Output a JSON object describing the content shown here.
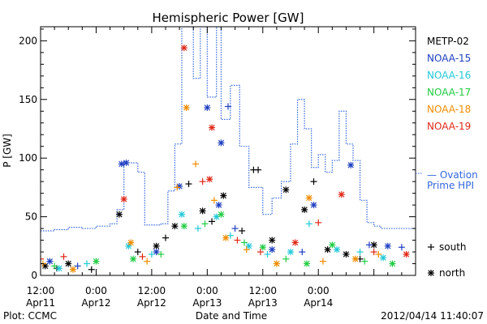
{
  "chart_data": {
    "type": "scatter",
    "title": "Hemispheric Power [GW]",
    "xlabel": "Date and Time",
    "ylabel": "P [GW]",
    "ylim": [
      0,
      212
    ],
    "xlim": [
      "2012-04-11T12:00",
      "2012-04-14T21:00"
    ],
    "y_ticks": [
      0,
      50,
      100,
      150,
      200
    ],
    "x_ticks": [
      {
        "time": "2012-04-11T12:00",
        "line1": "12:00",
        "line2": "Apr11"
      },
      {
        "time": "2012-04-12T00:00",
        "line1": "0:00",
        "line2": "Apr12"
      },
      {
        "time": "2012-04-12T12:00",
        "line1": "12:00",
        "line2": "Apr12"
      },
      {
        "time": "2012-04-13T00:00",
        "line1": "0:00",
        "line2": "Apr13"
      },
      {
        "time": "2012-04-13T12:00",
        "line1": "12:00",
        "line2": "Apr13"
      },
      {
        "time": "2012-04-14T00:00",
        "line1": "0:00",
        "line2": "Apr14"
      }
    ],
    "legend": [
      {
        "name": "METP-02",
        "color": "#000000"
      },
      {
        "name": "NOAA-15",
        "color": "#1f3fc0"
      },
      {
        "name": "NOAA-16",
        "color": "#22c8d8"
      },
      {
        "name": "NOAA-17",
        "color": "#22cc44"
      },
      {
        "name": "NOAA-18",
        "color": "#f08c00"
      },
      {
        "name": "NOAA-19",
        "color": "#e02818"
      }
    ],
    "ovation_label": [
      "— Ovation",
      "Prime HPI"
    ],
    "ovation_color": "#3366dd",
    "marker_legend": [
      {
        "symbol": "+",
        "label": "south"
      },
      {
        "symbol": "*",
        "label": "north"
      }
    ],
    "ovation_hpi": [
      [
        "2012-04-11T12:00",
        38
      ],
      [
        "2012-04-11T15:00",
        39
      ],
      [
        "2012-04-11T18:00",
        41
      ],
      [
        "2012-04-11T21:00",
        40
      ],
      [
        "2012-04-12T00:00",
        42
      ],
      [
        "2012-04-12T03:00",
        44
      ],
      [
        "2012-04-12T04:30",
        56
      ],
      [
        "2012-04-12T06:00",
        96
      ],
      [
        "2012-04-12T09:00",
        88
      ],
      [
        "2012-04-12T10:30",
        43
      ],
      [
        "2012-04-12T14:00",
        44
      ],
      [
        "2012-04-12T15:30",
        72
      ],
      [
        "2012-04-12T17:00",
        112
      ],
      [
        "2012-04-12T18:30",
        212
      ],
      [
        "2012-04-12T20:00",
        212
      ],
      [
        "2012-04-12T21:00",
        168
      ],
      [
        "2012-04-12T22:30",
        212
      ],
      [
        "2012-04-13T00:00",
        152
      ],
      [
        "2012-04-13T02:00",
        212
      ],
      [
        "2012-04-13T03:00",
        133
      ],
      [
        "2012-04-13T05:00",
        162
      ],
      [
        "2012-04-13T07:00",
        110
      ],
      [
        "2012-04-13T09:00",
        75
      ],
      [
        "2012-04-13T12:00",
        52
      ],
      [
        "2012-04-13T14:00",
        66
      ],
      [
        "2012-04-13T16:00",
        80
      ],
      [
        "2012-04-13T18:00",
        112
      ],
      [
        "2012-04-13T19:30",
        150
      ],
      [
        "2012-04-13T21:00",
        125
      ],
      [
        "2012-04-13T22:30",
        92
      ],
      [
        "2012-04-14T00:00",
        103
      ],
      [
        "2012-04-14T01:30",
        88
      ],
      [
        "2012-04-14T03:00",
        98
      ],
      [
        "2012-04-14T04:30",
        140
      ],
      [
        "2012-04-14T06:00",
        112
      ],
      [
        "2012-04-14T07:30",
        98
      ],
      [
        "2012-04-14T09:00",
        64
      ],
      [
        "2012-04-14T10:30",
        45
      ],
      [
        "2012-04-14T12:00",
        42
      ],
      [
        "2012-04-14T13:30",
        40
      ],
      [
        "2012-04-14T21:00",
        40
      ]
    ],
    "series": [
      {
        "name": "METP-02",
        "color": "#000000",
        "points": [
          [
            "2012-04-11T13:00",
            8,
            "*"
          ],
          [
            "2012-04-11T15:30",
            6,
            "+"
          ],
          [
            "2012-04-11T18:00",
            10,
            "*"
          ],
          [
            "2012-04-11T23:00",
            5,
            "+"
          ],
          [
            "2012-04-12T05:00",
            52,
            "*"
          ],
          [
            "2012-04-12T09:00",
            20,
            "+"
          ],
          [
            "2012-04-12T13:00",
            25,
            "*"
          ],
          [
            "2012-04-12T15:00",
            32,
            "+"
          ],
          [
            "2012-04-12T17:00",
            42,
            "*"
          ],
          [
            "2012-04-12T20:00",
            78,
            "+"
          ],
          [
            "2012-04-12T23:00",
            55,
            "*"
          ],
          [
            "2012-04-13T01:00",
            46,
            "+"
          ],
          [
            "2012-04-13T03:30",
            68,
            "*"
          ],
          [
            "2012-04-13T07:30",
            38,
            "+"
          ],
          [
            "2012-04-13T10:00",
            90,
            "+"
          ],
          [
            "2012-04-13T11:00",
            90,
            "+"
          ],
          [
            "2012-04-13T14:00",
            30,
            "*"
          ],
          [
            "2012-04-13T17:00",
            73,
            "*"
          ],
          [
            "2012-04-13T21:00",
            56,
            "*"
          ],
          [
            "2012-04-13T23:00",
            80,
            "+"
          ],
          [
            "2012-04-14T02:00",
            22,
            "*"
          ],
          [
            "2012-04-14T06:00",
            18,
            "*"
          ],
          [
            "2012-04-14T09:00",
            14,
            "+"
          ],
          [
            "2012-04-14T12:00",
            26,
            "*"
          ]
        ]
      },
      {
        "name": "NOAA-15",
        "color": "#1f3fc0",
        "points": [
          [
            "2012-04-11T14:00",
            12,
            "*"
          ],
          [
            "2012-04-11T20:00",
            8,
            "+"
          ],
          [
            "2012-04-12T05:30",
            95,
            "*"
          ],
          [
            "2012-04-12T06:30",
            96,
            "*"
          ],
          [
            "2012-04-12T13:00",
            20,
            "*"
          ],
          [
            "2012-04-12T18:00",
            76,
            "*"
          ],
          [
            "2012-04-13T00:00",
            143,
            "*"
          ],
          [
            "2012-04-13T02:30",
            60,
            "*"
          ],
          [
            "2012-04-13T04:30",
            144,
            "+"
          ],
          [
            "2012-04-13T03:00",
            113,
            "*"
          ],
          [
            "2012-04-13T06:00",
            40,
            "+"
          ],
          [
            "2012-04-13T14:00",
            22,
            "*"
          ],
          [
            "2012-04-13T20:30",
            20,
            "+"
          ],
          [
            "2012-04-13T23:00",
            60,
            "*"
          ],
          [
            "2012-04-14T07:00",
            94,
            "*"
          ],
          [
            "2012-04-14T11:00",
            26,
            "+"
          ],
          [
            "2012-04-14T15:00",
            25,
            "*"
          ],
          [
            "2012-04-14T18:00",
            24,
            "+"
          ]
        ]
      },
      {
        "name": "NOAA-16",
        "color": "#22c8d8",
        "points": [
          [
            "2012-04-11T16:00",
            6,
            "*"
          ],
          [
            "2012-04-11T22:00",
            10,
            "+"
          ],
          [
            "2012-04-12T07:00",
            25,
            "*"
          ],
          [
            "2012-04-12T12:00",
            18,
            "+"
          ],
          [
            "2012-04-12T18:30",
            52,
            "*"
          ],
          [
            "2012-04-12T22:00",
            40,
            "+"
          ],
          [
            "2012-04-13T02:00",
            50,
            "*"
          ],
          [
            "2012-04-13T05:00",
            34,
            "+"
          ],
          [
            "2012-04-13T09:00",
            25,
            "*"
          ],
          [
            "2012-04-13T13:00",
            18,
            "+"
          ],
          [
            "2012-04-13T18:00",
            20,
            "*"
          ],
          [
            "2012-04-13T22:00",
            44,
            "+"
          ],
          [
            "2012-04-14T04:00",
            22,
            "*"
          ],
          [
            "2012-04-14T09:00",
            20,
            "+"
          ],
          [
            "2012-04-14T14:00",
            15,
            "*"
          ]
        ]
      },
      {
        "name": "NOAA-17",
        "color": "#22cc44",
        "points": [
          [
            "2012-04-11T15:00",
            8,
            "+"
          ],
          [
            "2012-04-12T00:00",
            12,
            "*"
          ],
          [
            "2012-04-12T08:00",
            14,
            "*"
          ],
          [
            "2012-04-12T14:00",
            18,
            "+"
          ],
          [
            "2012-04-12T19:00",
            42,
            "*"
          ],
          [
            "2012-04-12T23:30",
            44,
            "+"
          ],
          [
            "2012-04-13T03:00",
            52,
            "*"
          ],
          [
            "2012-04-13T08:00",
            28,
            "+"
          ],
          [
            "2012-04-13T12:00",
            24,
            "*"
          ],
          [
            "2012-04-13T17:00",
            14,
            "+"
          ],
          [
            "2012-04-13T21:30",
            10,
            "*"
          ],
          [
            "2012-04-14T03:00",
            26,
            "*"
          ],
          [
            "2012-04-14T10:00",
            12,
            "+"
          ],
          [
            "2012-04-14T16:00",
            10,
            "*"
          ]
        ]
      },
      {
        "name": "NOAA-18",
        "color": "#f08c00",
        "points": [
          [
            "2012-04-11T12:30",
            10,
            "+"
          ],
          [
            "2012-04-11T19:00",
            5,
            "*"
          ],
          [
            "2012-04-12T07:30",
            28,
            "*"
          ],
          [
            "2012-04-12T11:00",
            12,
            "+"
          ],
          [
            "2012-04-12T17:30",
            75,
            "+"
          ],
          [
            "2012-04-12T19:30",
            143,
            "*"
          ],
          [
            "2012-04-12T21:30",
            95,
            "+"
          ],
          [
            "2012-04-13T01:30",
            64,
            "+"
          ],
          [
            "2012-04-13T04:00",
            32,
            "*"
          ],
          [
            "2012-04-13T08:30",
            22,
            "+"
          ],
          [
            "2012-04-13T15:00",
            10,
            "*"
          ],
          [
            "2012-04-13T22:00",
            66,
            "*"
          ],
          [
            "2012-04-14T01:00",
            12,
            "+"
          ],
          [
            "2012-04-14T08:00",
            14,
            "*"
          ],
          [
            "2012-04-14T13:00",
            18,
            "+"
          ]
        ]
      },
      {
        "name": "NOAA-19",
        "color": "#e02818",
        "points": [
          [
            "2012-04-11T12:00",
            14,
            "+"
          ],
          [
            "2012-04-11T17:00",
            16,
            "+"
          ],
          [
            "2012-04-12T06:00",
            65,
            "*"
          ],
          [
            "2012-04-12T10:00",
            16,
            "+"
          ],
          [
            "2012-04-12T19:00",
            194,
            "*"
          ],
          [
            "2012-04-12T23:00",
            80,
            "+"
          ],
          [
            "2012-04-13T01:00",
            126,
            "*"
          ],
          [
            "2012-04-13T00:30",
            82,
            "*"
          ],
          [
            "2012-04-13T06:30",
            30,
            "+"
          ],
          [
            "2012-04-13T11:30",
            20,
            "+"
          ],
          [
            "2012-04-13T19:00",
            28,
            "*"
          ],
          [
            "2012-04-14T00:00",
            45,
            "+"
          ],
          [
            "2012-04-14T05:00",
            69,
            "*"
          ],
          [
            "2012-04-14T12:00",
            20,
            "+"
          ],
          [
            "2012-04-14T19:00",
            18,
            "*"
          ]
        ]
      }
    ]
  },
  "footer": {
    "plot_credit": "Plot: CCMC",
    "timestamp": "2012/04/14 11:40:07"
  }
}
